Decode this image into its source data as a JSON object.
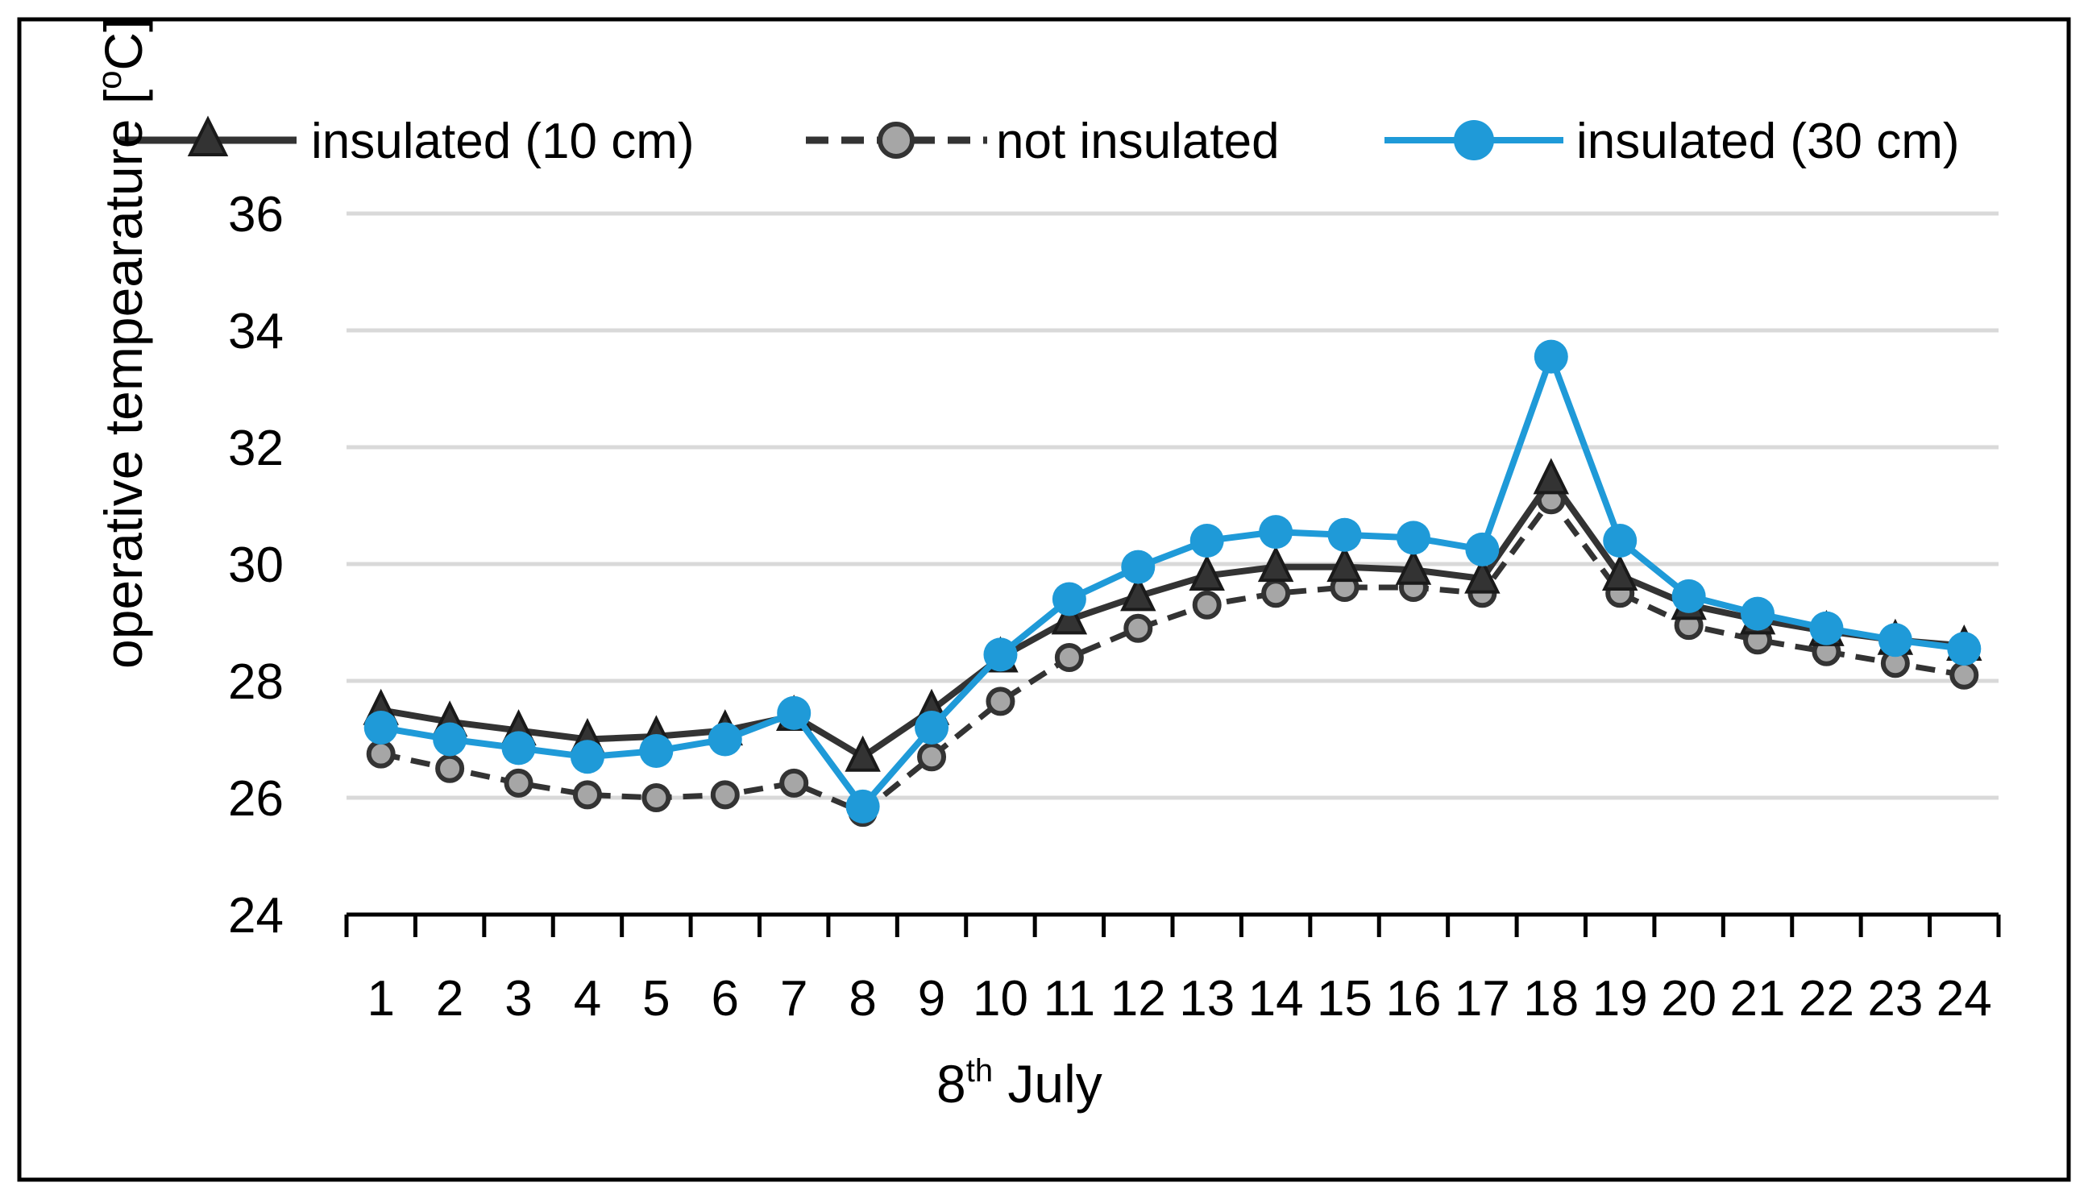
{
  "chart_data": {
    "type": "line",
    "title": "",
    "xlabel": "8th July",
    "xlabel_main": "8",
    "xlabel_sup": "th",
    "xlabel_rest": " July",
    "ylabel": "operative tempearature [oC]",
    "ylabel_main": "operative tempearature [",
    "ylabel_sup": "o",
    "ylabel_rest": "C]",
    "ylim": [
      24,
      36
    ],
    "yticks": [
      24,
      26,
      28,
      30,
      32,
      34,
      36
    ],
    "categories": [
      "1",
      "2",
      "3",
      "4",
      "5",
      "6",
      "7",
      "8",
      "9",
      "10",
      "11",
      "12",
      "13",
      "14",
      "15",
      "16",
      "17",
      "18",
      "19",
      "20",
      "21",
      "22",
      "23",
      "24"
    ],
    "grid": true,
    "legend_position": "top",
    "series": [
      {
        "name": "insulated (10 cm)",
        "color": "#333333",
        "line_style": "solid",
        "marker": "triangle",
        "values": [
          27.5,
          27.3,
          27.15,
          27.0,
          27.05,
          27.15,
          27.4,
          26.7,
          27.5,
          28.4,
          29.05,
          29.45,
          29.8,
          29.95,
          29.95,
          29.9,
          29.75,
          31.45,
          29.8,
          29.3,
          29.05,
          28.85,
          28.7,
          28.6
        ]
      },
      {
        "name": "not insulated",
        "color": "#333333",
        "marker_fill": "#a6a6a6",
        "line_style": "dashed",
        "marker": "circle-small",
        "values": [
          26.75,
          26.5,
          26.25,
          26.05,
          26.0,
          26.05,
          26.25,
          25.75,
          26.7,
          27.65,
          28.4,
          28.9,
          29.3,
          29.5,
          29.6,
          29.6,
          29.5,
          31.1,
          29.5,
          28.95,
          28.7,
          28.5,
          28.3,
          28.1
        ]
      },
      {
        "name": "insulated (30 cm)",
        "color": "#1f9ad8",
        "line_style": "solid",
        "marker": "circle",
        "values": [
          27.2,
          27.0,
          26.85,
          26.7,
          26.8,
          27.0,
          27.45,
          25.85,
          27.2,
          28.45,
          29.4,
          29.95,
          30.4,
          30.55,
          30.5,
          30.45,
          30.25,
          33.55,
          30.4,
          29.45,
          29.15,
          28.9,
          28.7,
          28.55
        ]
      }
    ]
  }
}
